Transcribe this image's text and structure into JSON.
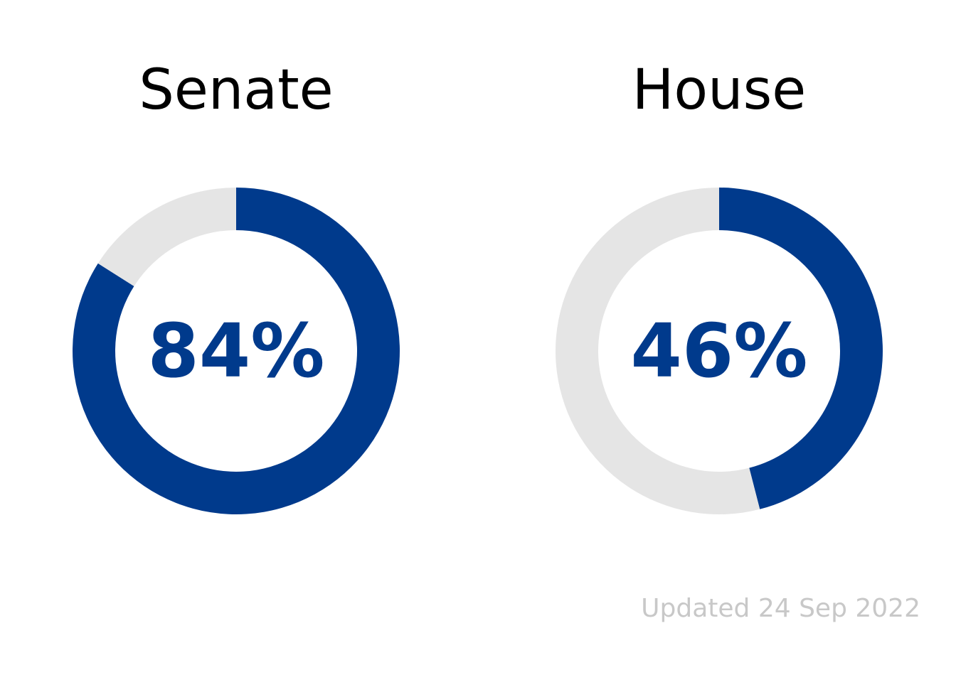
{
  "chart_data": [
    {
      "type": "pie",
      "title": "Senate",
      "value_label": "84%",
      "values": [
        84,
        16
      ],
      "colors": [
        "#003a8c",
        "#e5e5e5"
      ]
    },
    {
      "type": "pie",
      "title": "House",
      "value_label": "46%",
      "values": [
        46,
        54
      ],
      "colors": [
        "#003a8c",
        "#e5e5e5"
      ]
    }
  ],
  "footer": {
    "updated_text": "Updated 24 Sep 2022",
    "color": "#c8c8c8"
  }
}
